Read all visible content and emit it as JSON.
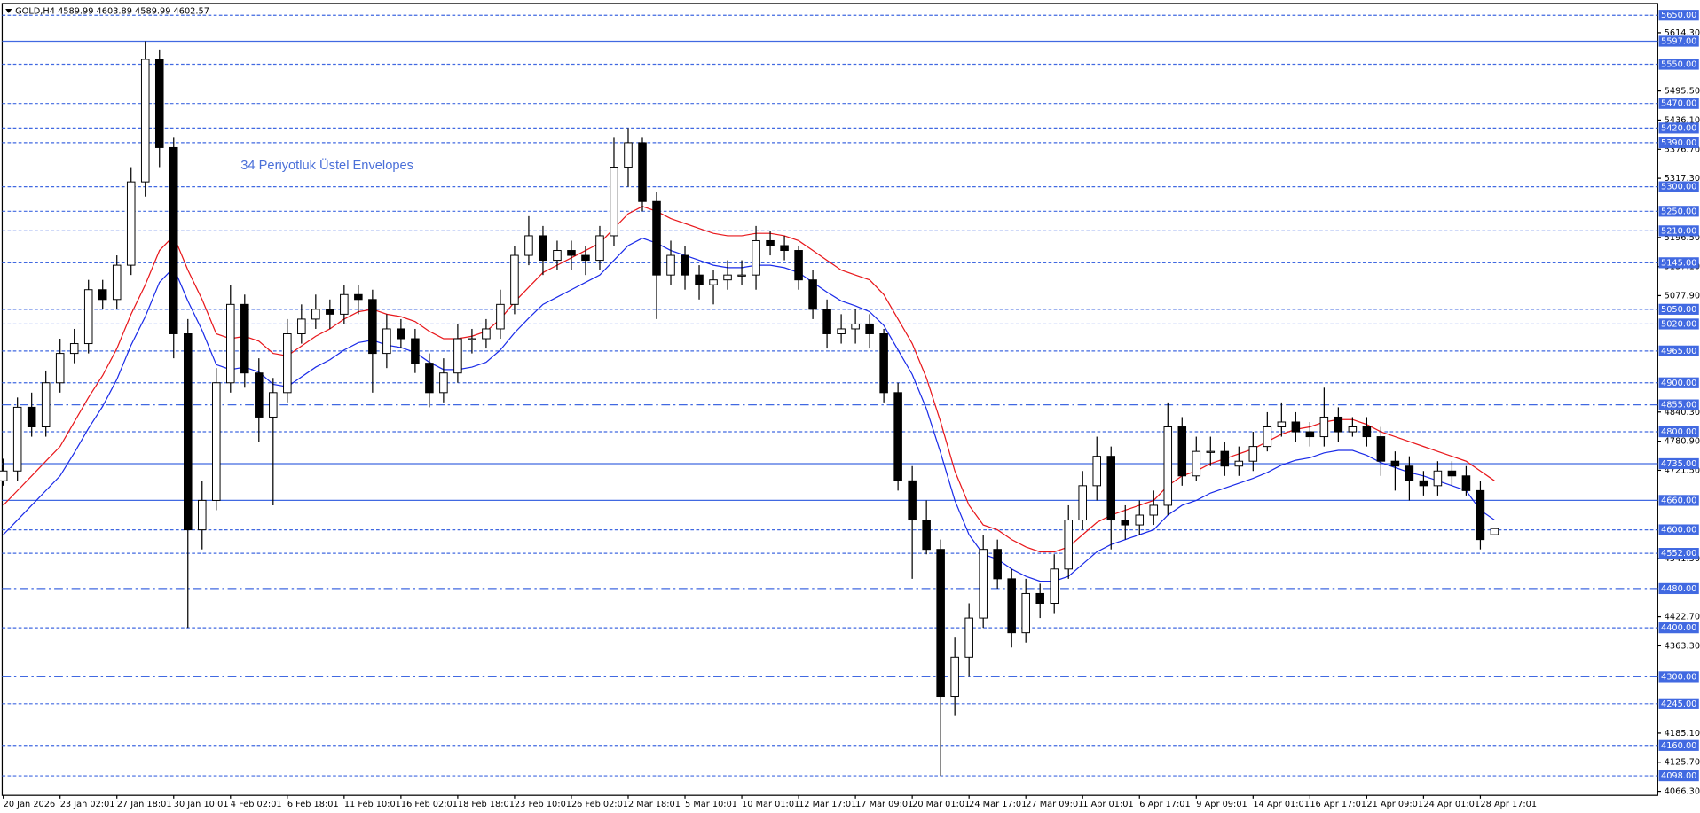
{
  "chart_data": {
    "type": "candlestick",
    "title": "GOLD,H4  4589.99 4603.89 4589.99 4602.57",
    "annotation": "34 Periyotluk Üstel Envelopes",
    "ylim": [
      4058,
      5674
    ],
    "yticks": [
      {
        "value": 5614.3,
        "label": "5614.30"
      },
      {
        "value": 5495.5,
        "label": "5495.50"
      },
      {
        "value": 5436.1,
        "label": "5436.10"
      },
      {
        "value": 5376.7,
        "label": "5376.70"
      },
      {
        "value": 5317.3,
        "label": "5317.30"
      },
      {
        "value": 5196.5,
        "label": "5196.50"
      },
      {
        "value": 5137.1,
        "label": "5137.10"
      },
      {
        "value": 5077.9,
        "label": "5077.90"
      },
      {
        "value": 4840.3,
        "label": "4840.30"
      },
      {
        "value": 4780.9,
        "label": "4780.90"
      },
      {
        "value": 4721.5,
        "label": "4721.50"
      },
      {
        "value": 4541.5,
        "label": "4541.50"
      },
      {
        "value": 4422.7,
        "label": "4422.70"
      },
      {
        "value": 4363.3,
        "label": "4363.30"
      },
      {
        "value": 4185.1,
        "label": "4185.10"
      },
      {
        "value": 4125.7,
        "label": "4125.70"
      },
      {
        "value": 4066.3,
        "label": "4066.30"
      }
    ],
    "levels": [
      {
        "value": 5650,
        "label": "5650.00",
        "style": "dashed"
      },
      {
        "value": 5597,
        "label": "5597.00",
        "style": "solid"
      },
      {
        "value": 5550,
        "label": "5550.00",
        "style": "dashed"
      },
      {
        "value": 5470,
        "label": "5470.00",
        "style": "dashed"
      },
      {
        "value": 5420,
        "label": "5420.00",
        "style": "dashed"
      },
      {
        "value": 5390,
        "label": "5390.00",
        "style": "dashed"
      },
      {
        "value": 5300,
        "label": "5300.00",
        "style": "dashed"
      },
      {
        "value": 5250,
        "label": "5250.00",
        "style": "dashed"
      },
      {
        "value": 5210,
        "label": "5210.00",
        "style": "dashed"
      },
      {
        "value": 5145,
        "label": "5145.00",
        "style": "dashed"
      },
      {
        "value": 5050,
        "label": "5050.00",
        "style": "dashed"
      },
      {
        "value": 5020,
        "label": "5020.00",
        "style": "dashed"
      },
      {
        "value": 4965,
        "label": "4965.00",
        "style": "dashed"
      },
      {
        "value": 4900,
        "label": "4900.00",
        "style": "dashed"
      },
      {
        "value": 4855,
        "label": "4855.00",
        "style": "dashdot"
      },
      {
        "value": 4800,
        "label": "4800.00",
        "style": "dashed"
      },
      {
        "value": 4735,
        "label": "4735.00",
        "style": "solid"
      },
      {
        "value": 4660,
        "label": "4660.00",
        "style": "solid"
      },
      {
        "value": 4600,
        "label": "4600.00",
        "style": "dashed"
      },
      {
        "value": 4552,
        "label": "4552.00",
        "style": "dashed"
      },
      {
        "value": 4480,
        "label": "4480.00",
        "style": "dashdot"
      },
      {
        "value": 4400,
        "label": "4400.00",
        "style": "dashed"
      },
      {
        "value": 4300,
        "label": "4300.00",
        "style": "dashdot"
      },
      {
        "value": 4245,
        "label": "4245.00",
        "style": "dashed"
      },
      {
        "value": 4160,
        "label": "4160.00",
        "style": "dashed"
      },
      {
        "value": 4098,
        "label": "4098.00",
        "style": "dashed"
      }
    ],
    "level_color": "#4169e1",
    "categories": [
      "20 Jan 2026",
      null,
      null,
      null,
      "23 Jan 02:01",
      null,
      null,
      null,
      "27 Jan 18:01",
      null,
      null,
      null,
      "30 Jan 10:01",
      null,
      null,
      null,
      "4 Feb 02:01",
      null,
      null,
      null,
      "6 Feb 18:01",
      null,
      null,
      null,
      "11 Feb 10:01",
      null,
      null,
      null,
      "16 Feb 02:01",
      null,
      null,
      null,
      "18 Feb 18:01",
      null,
      null,
      null,
      "23 Feb 10:01",
      null,
      null,
      null,
      "26 Feb 02:01",
      null,
      null,
      null,
      "2 Mar 18:01",
      null,
      null,
      null,
      "5 Mar 10:01",
      null,
      null,
      null,
      "10 Mar 01:01",
      null,
      null,
      null,
      "12 Mar 17:01",
      null,
      null,
      null,
      "17 Mar 09:01",
      null,
      null,
      null,
      "20 Mar 01:01",
      null,
      null,
      null,
      "24 Mar 17:01",
      null,
      null,
      null,
      "27 Mar 09:01",
      null,
      null,
      null,
      "1 Apr 01:01",
      null,
      null,
      null,
      "6 Apr 17:01",
      null,
      null,
      null,
      "9 Apr 09:01",
      null,
      null,
      null,
      "14 Apr 01:01",
      null,
      null,
      null,
      "16 Apr 17:01",
      null,
      null,
      null,
      "21 Apr 09:01",
      null,
      null,
      null,
      "24 Apr 01:01",
      null,
      null,
      null,
      "28 Apr 17:01",
      null
    ],
    "open": [
      4700,
      4720,
      4850,
      4810,
      4900,
      4960,
      4980,
      5090,
      5070,
      5140,
      5310,
      5560,
      5380,
      5000,
      4600,
      4660,
      4900,
      5060,
      4920,
      4830,
      4880,
      5000,
      5030,
      5050,
      5040,
      5080,
      5070,
      4960,
      5010,
      4990,
      4940,
      4880,
      4920,
      4990,
      4990,
      5010,
      5060,
      5160,
      5200,
      5150,
      5170,
      5160,
      5150,
      5200,
      5340,
      5390,
      5270,
      5120,
      5160,
      5120,
      5100,
      5110,
      5120,
      5120,
      5190,
      5180,
      5170,
      5110,
      5050,
      5000,
      5010,
      5020,
      5000,
      4880,
      4700,
      4620,
      4560,
      4260,
      4340,
      4420,
      4560,
      4500,
      4390,
      4470,
      4450,
      4520,
      4620,
      4690,
      4750,
      4620,
      4610,
      4630,
      4650,
      4810,
      4710,
      4760,
      4760,
      4730,
      4740,
      4770,
      4810,
      4820,
      4800,
      4790,
      4830,
      4800,
      4810,
      4790,
      4740,
      4730,
      4700,
      4690,
      4720,
      4710,
      4680,
      4589.99
    ],
    "high": [
      4745,
      4870,
      4880,
      4925,
      4990,
      5010,
      5110,
      5110,
      5160,
      5340,
      5597,
      5580,
      5400,
      5030,
      4700,
      4930,
      5100,
      5080,
      4950,
      4910,
      5030,
      5060,
      5080,
      5070,
      5100,
      5100,
      5090,
      5040,
      5030,
      5010,
      4960,
      4950,
      5020,
      5010,
      5030,
      5090,
      5180,
      5240,
      5220,
      5190,
      5190,
      5180,
      5220,
      5400,
      5420,
      5400,
      5290,
      5190,
      5180,
      5140,
      5130,
      5150,
      5150,
      5220,
      5210,
      5200,
      5180,
      5130,
      5070,
      5040,
      5050,
      5040,
      5010,
      4900,
      4730,
      4660,
      4580,
      4380,
      4450,
      4590,
      4580,
      4520,
      4500,
      4490,
      4550,
      4650,
      4720,
      4790,
      4770,
      4650,
      4660,
      4680,
      4860,
      4830,
      4790,
      4790,
      4780,
      4770,
      4800,
      4840,
      4860,
      4840,
      4820,
      4890,
      4850,
      4830,
      4830,
      4810,
      4760,
      4750,
      4720,
      4740,
      4740,
      4730,
      4700,
      4603.89
    ],
    "low": [
      4690,
      4700,
      4790,
      4790,
      4880,
      4940,
      4960,
      5050,
      5050,
      5120,
      5280,
      5340,
      4950,
      4400,
      4560,
      4640,
      4880,
      4890,
      4780,
      4650,
      4860,
      4980,
      5010,
      5010,
      5020,
      5040,
      4880,
      4930,
      4970,
      4920,
      4850,
      4860,
      4900,
      4960,
      4970,
      4990,
      5040,
      5140,
      5120,
      5130,
      5130,
      5120,
      5130,
      5180,
      5300,
      5250,
      5030,
      5100,
      5090,
      5070,
      5060,
      5090,
      5100,
      5090,
      5160,
      5150,
      5090,
      5030,
      4970,
      4980,
      4980,
      4970,
      4860,
      4680,
      4500,
      4550,
      4098,
      4220,
      4300,
      4400,
      4480,
      4360,
      4370,
      4420,
      4430,
      4500,
      4600,
      4660,
      4560,
      4580,
      4590,
      4610,
      4630,
      4690,
      4700,
      4730,
      4710,
      4710,
      4720,
      4760,
      4790,
      4780,
      4770,
      4770,
      4780,
      4790,
      4770,
      4710,
      4680,
      4660,
      4670,
      4670,
      4690,
      4670,
      4560,
      4589.99
    ],
    "close": [
      4720,
      4850,
      4810,
      4900,
      4960,
      4980,
      5090,
      5070,
      5140,
      5310,
      5560,
      5380,
      5000,
      4600,
      4660,
      4900,
      5060,
      4920,
      4830,
      4880,
      5000,
      5030,
      5050,
      5040,
      5080,
      5070,
      4960,
      5010,
      4990,
      4940,
      4880,
      4920,
      4990,
      4990,
      5010,
      5060,
      5160,
      5200,
      5150,
      5170,
      5160,
      5150,
      5200,
      5340,
      5390,
      5270,
      5120,
      5160,
      5120,
      5100,
      5110,
      5120,
      5120,
      5190,
      5180,
      5170,
      5110,
      5050,
      5000,
      5010,
      5020,
      5000,
      4880,
      4700,
      4620,
      4560,
      4260,
      4340,
      4420,
      4560,
      4500,
      4390,
      4470,
      4450,
      4520,
      4620,
      4690,
      4750,
      4620,
      4610,
      4630,
      4650,
      4810,
      4710,
      4760,
      4760,
      4730,
      4740,
      4770,
      4810,
      4820,
      4800,
      4790,
      4830,
      4800,
      4810,
      4790,
      4740,
      4730,
      4700,
      4690,
      4720,
      4710,
      4680,
      4580,
      4602.57
    ],
    "series": [
      {
        "color": "#e8171b",
        "values": [
          4650,
          4680,
          4710,
          4740,
          4770,
          4820,
          4870,
          4915,
          4970,
          5040,
          5100,
          5170,
          5200,
          5130,
          5070,
          5000,
          4990,
          4995,
          4985,
          4960,
          4955,
          4975,
          4995,
          5010,
          5030,
          5045,
          5050,
          5040,
          5035,
          5025,
          5005,
          4990,
          4990,
          4995,
          5005,
          5030,
          5065,
          5095,
          5125,
          5140,
          5155,
          5170,
          5185,
          5215,
          5245,
          5260,
          5250,
          5235,
          5225,
          5215,
          5205,
          5200,
          5200,
          5205,
          5205,
          5200,
          5190,
          5170,
          5150,
          5130,
          5120,
          5110,
          5080,
          5030,
          4980,
          4910,
          4820,
          4720,
          4650,
          4610,
          4600,
          4580,
          4565,
          4555,
          4555,
          4565,
          4590,
          4615,
          4630,
          4640,
          4650,
          4660,
          4690,
          4710,
          4720,
          4735,
          4745,
          4755,
          4765,
          4780,
          4795,
          4805,
          4810,
          4820,
          4825,
          4825,
          4815,
          4800,
          4790,
          4780,
          4770,
          4760,
          4750,
          4740,
          4720,
          4700
        ]
      },
      {
        "color": "#1a2be8",
        "values": [
          4590,
          4620,
          4650,
          4680,
          4710,
          4757,
          4807,
          4852,
          4907,
          4977,
          5035,
          5105,
          5135,
          5067,
          5007,
          4937,
          4927,
          4932,
          4922,
          4897,
          4892,
          4912,
          4932,
          4947,
          4967,
          4982,
          4987,
          4977,
          4972,
          4962,
          4942,
          4927,
          4927,
          4932,
          4942,
          4967,
          5002,
          5032,
          5060,
          5075,
          5090,
          5105,
          5120,
          5150,
          5180,
          5195,
          5185,
          5170,
          5160,
          5150,
          5140,
          5135,
          5135,
          5140,
          5140,
          5135,
          5125,
          5105,
          5085,
          5067,
          5057,
          5045,
          5017,
          4967,
          4917,
          4847,
          4757,
          4660,
          4590,
          4550,
          4540,
          4520,
          4505,
          4495,
          4495,
          4505,
          4530,
          4555,
          4570,
          4580,
          4590,
          4600,
          4630,
          4650,
          4660,
          4675,
          4685,
          4695,
          4705,
          4717,
          4732,
          4742,
          4747,
          4757,
          4762,
          4762,
          4752,
          4737,
          4727,
          4717,
          4710,
          4700,
          4690,
          4680,
          4640,
          4620
        ]
      }
    ]
  }
}
